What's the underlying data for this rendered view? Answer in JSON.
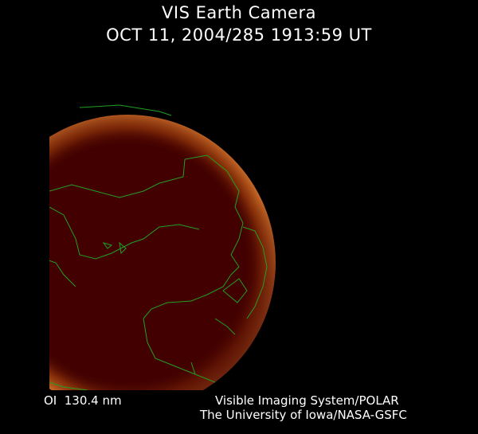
{
  "title": "VIS Earth Camera",
  "timestamp": "OCT 11, 2004/285 1913:59 UT",
  "wavelength": "OI  130.4 nm",
  "credit_line1": "Visible Imaging System/POLAR",
  "credit_line2": "The University of Iowa/NASA-GSFC",
  "colors": {
    "background": "#000000",
    "earth_disk": "#420000",
    "aurora": "#d2691e",
    "coastlines": "#22a022",
    "text": "#ffffff"
  }
}
